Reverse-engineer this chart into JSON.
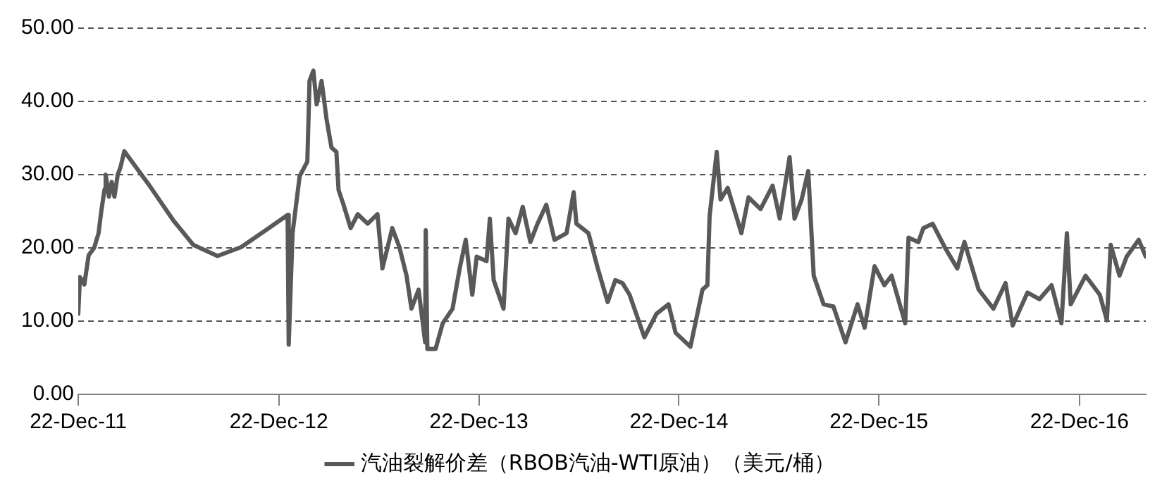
{
  "chart_data": {
    "type": "line",
    "x": [
      "2011-12-22",
      "2011-12-25",
      "2012-01-02",
      "2012-01-10",
      "2012-01-20",
      "2012-01-28",
      "2012-02-02",
      "2012-02-08",
      "2012-02-10",
      "2012-02-16",
      "2012-02-21",
      "2012-02-26",
      "2012-03-03",
      "2012-03-08",
      "2012-03-15",
      "2012-04-30",
      "2012-06-13",
      "2012-07-19",
      "2012-09-01",
      "2012-10-14",
      "2012-11-28",
      "2013-01-07",
      "2013-01-09",
      "2013-01-16",
      "2013-01-29",
      "2013-02-12",
      "2013-02-16",
      "2013-02-23",
      "2013-03-01",
      "2013-03-10",
      "2013-03-19",
      "2013-03-28",
      "2013-04-06",
      "2013-04-10",
      "2013-04-19",
      "2013-05-02",
      "2013-05-15",
      "2013-06-02",
      "2013-06-20",
      "2013-06-29",
      "2013-07-17",
      "2013-07-30",
      "2013-08-12",
      "2013-08-21",
      "2013-09-03",
      "2013-09-15",
      "2013-09-16",
      "2013-09-19",
      "2013-10-04",
      "2013-10-17",
      "2013-11-04",
      "2013-11-17",
      "2013-11-28",
      "2013-12-10",
      "2013-12-18",
      "2014-01-05",
      "2014-01-11",
      "2014-01-18",
      "2014-02-05",
      "2014-02-14",
      "2014-02-27",
      "2014-03-12",
      "2014-03-26",
      "2014-04-08",
      "2014-04-24",
      "2014-05-09",
      "2014-05-31",
      "2014-06-13",
      "2014-06-18",
      "2014-07-10",
      "2014-07-27",
      "2014-08-14",
      "2014-08-28",
      "2014-09-10",
      "2014-09-23",
      "2014-10-20",
      "2014-11-11",
      "2014-12-03",
      "2014-12-16",
      "2015-01-12",
      "2015-02-03",
      "2015-02-12",
      "2015-02-16",
      "2015-03-01",
      "2015-03-08",
      "2015-03-21",
      "2015-04-15",
      "2015-04-28",
      "2015-05-20",
      "2015-06-11",
      "2015-06-24",
      "2015-07-12",
      "2015-07-21",
      "2015-08-03",
      "2015-08-15",
      "2015-08-25",
      "2015-09-12",
      "2015-09-30",
      "2015-10-22",
      "2015-11-13",
      "2015-11-26",
      "2015-12-14",
      "2016-01-01",
      "2016-01-14",
      "2016-02-08",
      "2016-02-14",
      "2016-03-03",
      "2016-03-12",
      "2016-03-29",
      "2016-04-20",
      "2016-05-13",
      "2016-05-26",
      "2016-06-21",
      "2016-07-18",
      "2016-08-09",
      "2016-08-22",
      "2016-09-18",
      "2016-10-10",
      "2016-11-01",
      "2016-11-19",
      "2016-11-29",
      "2016-12-06",
      "2017-01-02",
      "2017-01-28",
      "2017-02-10",
      "2017-02-17",
      "2017-03-05",
      "2017-03-18",
      "2017-04-09",
      "2017-04-22"
    ],
    "series": [
      {
        "name": "汽油裂解价差（RBOB汽油-WTI原油）（美元/桶）",
        "color": "#595959",
        "values": [
          11,
          16,
          15,
          19,
          20,
          22,
          25,
          28,
          30,
          27,
          29,
          27,
          30,
          31,
          33.2,
          28.5,
          23.7,
          20.4,
          18.9,
          20.1,
          22.4,
          24.5,
          6.8,
          22,
          29.8,
          31.8,
          42.8,
          44.2,
          39.6,
          42.8,
          37.6,
          33.7,
          33.1,
          27.9,
          25.9,
          22.7,
          24.6,
          23.3,
          24.6,
          17.2,
          22.7,
          20.1,
          16.2,
          11.7,
          14.3,
          7.1,
          22.4,
          6.2,
          6.2,
          9.7,
          11.7,
          17.2,
          21.1,
          13.6,
          18.8,
          18.2,
          24,
          15.6,
          11.7,
          24,
          22,
          25.6,
          20.8,
          23.3,
          25.9,
          21.1,
          22,
          27.6,
          23.3,
          22,
          17.2,
          12.6,
          15.6,
          15.2,
          13.6,
          7.8,
          11,
          12.3,
          8.4,
          6.5,
          14.3,
          14.9,
          24.3,
          33.1,
          26.6,
          28.2,
          22,
          26.9,
          25.3,
          28.5,
          24,
          32.4,
          24,
          26.6,
          30.5,
          16.2,
          12.3,
          12,
          7.1,
          12.3,
          9.1,
          17.5,
          14.9,
          16.2,
          9.7,
          21.4,
          20.8,
          22.7,
          23.3,
          20.1,
          17.2,
          20.8,
          14.3,
          11.7,
          15.2,
          9.4,
          13.9,
          13,
          14.9,
          9.7,
          22,
          12.3,
          16.2,
          13.6,
          10.1,
          20.4,
          16.2,
          18.8,
          21.1,
          18.8
        ]
      }
    ],
    "xlim": [
      "2011-12-22",
      "2017-04-22"
    ],
    "xticks": [
      {
        "value": "2011-12-22",
        "label": "22-Dec-11"
      },
      {
        "value": "2012-12-22",
        "label": "22-Dec-12"
      },
      {
        "value": "2013-12-22",
        "label": "22-Dec-13"
      },
      {
        "value": "2014-12-22",
        "label": "22-Dec-14"
      },
      {
        "value": "2015-12-22",
        "label": "22-Dec-15"
      },
      {
        "value": "2016-12-22",
        "label": "22-Dec-16"
      }
    ],
    "ylim": [
      0,
      50
    ],
    "yticks": [
      {
        "value": 0,
        "label": "0.00"
      },
      {
        "value": 10,
        "label": "10.00"
      },
      {
        "value": 20,
        "label": "20.00"
      },
      {
        "value": 30,
        "label": "30.00"
      },
      {
        "value": 40,
        "label": "40.00"
      },
      {
        "value": 50,
        "label": "50.00"
      }
    ],
    "grid": "y",
    "legend": "bottom",
    "marker": "none",
    "line_style": "solid"
  }
}
